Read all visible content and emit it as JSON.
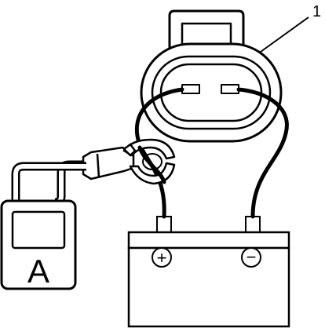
{
  "diagram": {
    "callout_number": "1",
    "meter": {
      "symbol": "A"
    },
    "battery": {
      "positive_symbol": "+",
      "negative_symbol": "−"
    }
  },
  "colors": {
    "stroke": "#000000",
    "fill": "#ffffff"
  }
}
